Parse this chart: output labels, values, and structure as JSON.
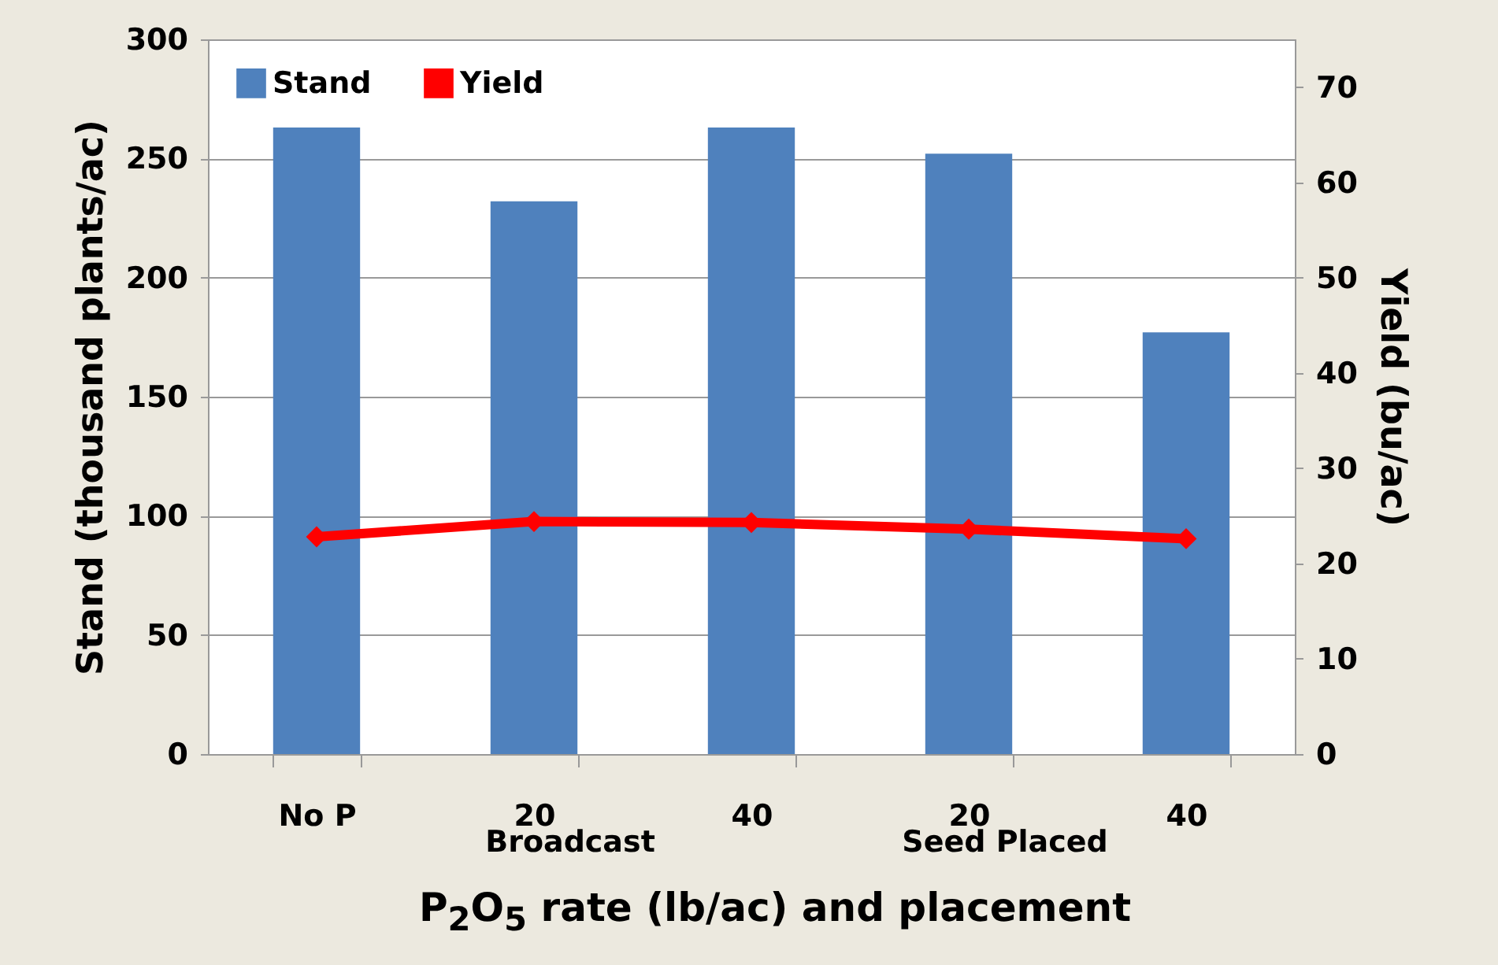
{
  "chart_data": {
    "type": "bar",
    "categories": [
      "No P",
      "20",
      "40",
      "20",
      "40"
    ],
    "xlabel": "P$_{2}$O$_{5}$ rate (lb/ac) and placement",
    "ylabel": "Stand (thousand plants/ac)",
    "y2label": "Yield (bu/ac)",
    "series": [
      {
        "name": "Stand",
        "color": "#4f81bd",
        "values": [
          263,
          232,
          263,
          252,
          177
        ]
      },
      {
        "name": "Yield",
        "type": "line",
        "axis": "y2",
        "color": "#ff0000",
        "marker": "diamond",
        "values": [
          22.8,
          24.4,
          24.3,
          23.6,
          22.6
        ]
      }
    ],
    "ylim": [
      0,
      300
    ],
    "yticks": [
      0,
      50,
      100,
      150,
      200,
      250,
      300
    ],
    "y2lim": [
      0,
      75
    ],
    "y2ticks": [
      0,
      10,
      20,
      30,
      40,
      50,
      60,
      70
    ],
    "grid": "y",
    "legend": "top left",
    "annotations": [
      "Broadcast",
      "Seed Placed"
    ]
  }
}
